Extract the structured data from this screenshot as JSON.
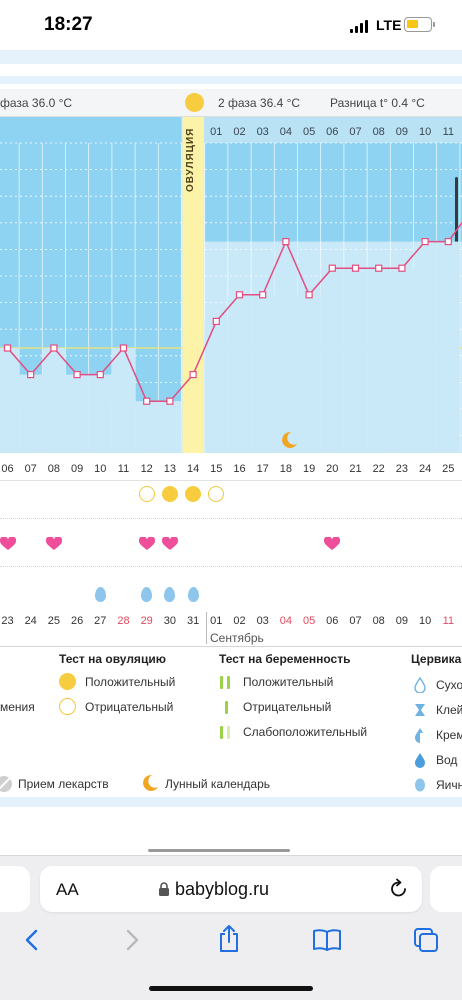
{
  "status_bar": {
    "time": "18:27",
    "network": "LTE"
  },
  "header": {
    "phase1": "фаза 36.0 °С",
    "phase2": "2 фаза  36.4 °С",
    "diff": "Разница t° 0.4 °С",
    "ovulation_label": "ОВУЛЯЦИЯ"
  },
  "chart": {
    "top_dates": [
      "01",
      "02",
      "03",
      "04",
      "05",
      "06",
      "07",
      "08",
      "09",
      "10",
      "11"
    ],
    "x_labels": [
      "06",
      "07",
      "08",
      "09",
      "10",
      "11",
      "12",
      "13",
      "14",
      "15",
      "16",
      "17",
      "18",
      "19",
      "20",
      "21",
      "22",
      "23",
      "24",
      "25"
    ],
    "bottom_dates": [
      "23",
      "24",
      "25",
      "26",
      "27",
      "28",
      "29",
      "30",
      "31",
      "01",
      "02",
      "03",
      "04",
      "05",
      "06",
      "07",
      "08",
      "09",
      "10",
      "11"
    ],
    "red_bottom_indices": [
      5,
      6,
      12,
      13,
      19
    ],
    "month": "Сентябрь"
  },
  "chart_data": {
    "type": "line",
    "title": "",
    "xlabel": "",
    "ylabel": "",
    "x": [
      "06",
      "07",
      "08",
      "09",
      "10",
      "11",
      "12",
      "13",
      "14",
      "15",
      "16",
      "17",
      "18",
      "19",
      "20",
      "21",
      "22",
      "23",
      "24",
      "25"
    ],
    "series": [
      {
        "values": [
          36.05,
          35.95,
          36.05,
          35.95,
          35.95,
          36.05,
          35.85,
          35.85,
          35.95,
          36.15,
          36.25,
          36.25,
          36.45,
          36.25,
          36.35,
          36.35,
          36.35,
          36.35,
          36.45,
          36.45
        ]
      }
    ],
    "ovulation_day": "14",
    "grid": true
  },
  "markers": {
    "ovulation_tests": [
      {
        "day": "12",
        "result": "negative"
      },
      {
        "day": "13",
        "result": "positive"
      },
      {
        "day": "14",
        "result": "positive"
      },
      {
        "day": "15",
        "result": "negative"
      }
    ],
    "hearts_days": [
      "06",
      "08",
      "12",
      "13",
      "20"
    ],
    "drops_days": [
      "10",
      "12",
      "13",
      "14"
    ],
    "moon_day": "18"
  },
  "legend": {
    "ovulation_test_title": "Тест на овуляцию",
    "positive": "Положительный",
    "negative": "Отрицательный",
    "pregnancy_test_title": "Тест на беременность",
    "preg_positive": "Положительный",
    "preg_negative": "Отрицательный",
    "preg_weak": "Слабоположительный",
    "cervical_title": "Цервика",
    "cervical_items": [
      "Сухо",
      "Клей",
      "Крем",
      "Вод",
      "Яичн"
    ],
    "left_partial": "мения",
    "medication": "Прием лекарств",
    "lunar": "Лунный календарь"
  },
  "browser": {
    "aa_label": "AA",
    "url": "babyblog.ru"
  },
  "colors": {
    "chart_blue": "#8fd3f2",
    "bar_light": "#c9e8f8",
    "line_pink": "#e34d7f",
    "ovulation_yellow": "#fdf3a8",
    "sun_yellow": "#f7cd3f",
    "ios_blue": "#1f6fe0"
  }
}
